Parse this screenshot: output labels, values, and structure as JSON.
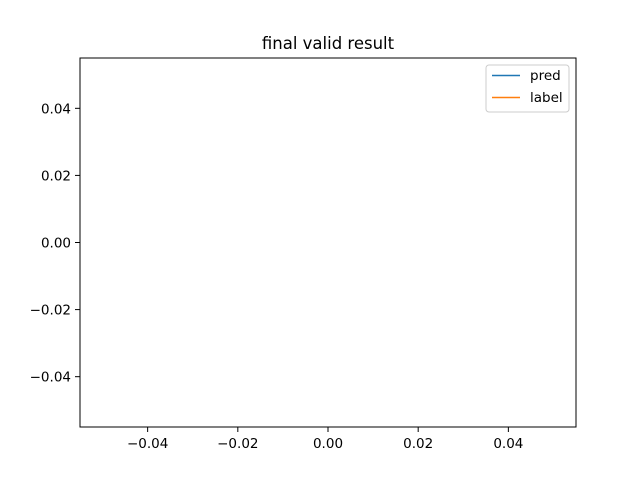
{
  "chart_data": {
    "type": "line",
    "title": "final valid result",
    "xlabel": "",
    "ylabel": "",
    "xlim": [
      -0.055,
      0.055
    ],
    "ylim": [
      -0.055,
      0.055
    ],
    "xticks": [
      "−0.04",
      "−0.02",
      "0.00",
      "0.02",
      "0.04"
    ],
    "xtick_values": [
      -0.04,
      -0.02,
      0.0,
      0.02,
      0.04
    ],
    "yticks": [
      "−0.04",
      "−0.02",
      "0.00",
      "0.02",
      "0.04"
    ],
    "ytick_values": [
      -0.04,
      -0.02,
      0.0,
      0.02,
      0.04
    ],
    "grid": false,
    "legend_position": "top-right",
    "series": [
      {
        "name": "pred",
        "color": "#1f77b4",
        "x": [],
        "y": []
      },
      {
        "name": "label",
        "color": "#ff7f0e",
        "x": [],
        "y": []
      }
    ]
  }
}
